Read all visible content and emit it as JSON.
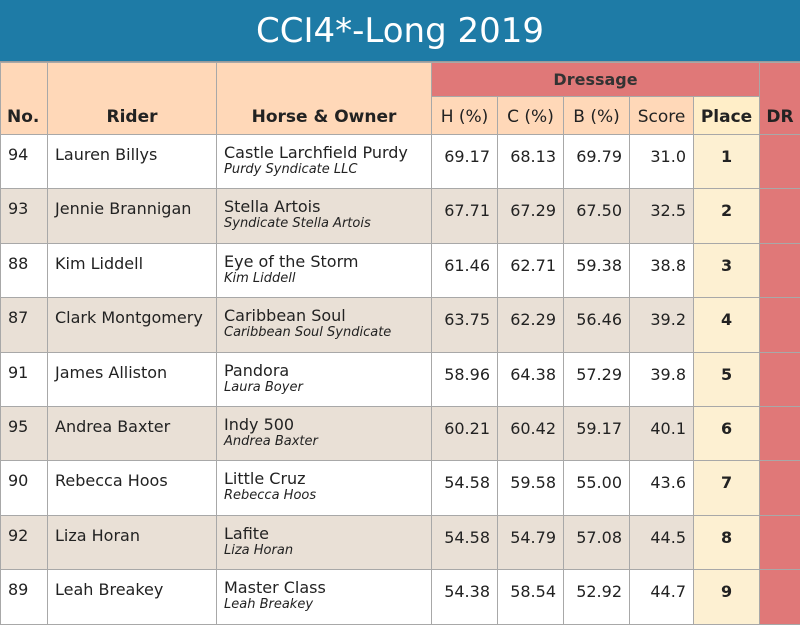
{
  "title": "CCI4*-Long 2019",
  "headers": {
    "no": "No.",
    "rider": "Rider",
    "horse": "Horse & Owner",
    "dressage": "Dressage",
    "h": "H (%)",
    "c": "C (%)",
    "b": "B (%)",
    "score": "Score",
    "place": "Place",
    "dr": "DR"
  },
  "rows": [
    {
      "no": "94",
      "rider": "Lauren Billys",
      "horse": "Castle Larchfield Purdy",
      "owner": "Purdy Syndicate LLC",
      "h": "69.17",
      "c": "68.13",
      "b": "69.79",
      "score": "31.0",
      "place": "1"
    },
    {
      "no": "93",
      "rider": "Jennie Brannigan",
      "horse": "Stella Artois",
      "owner": "Syndicate Stella Artois",
      "h": "67.71",
      "c": "67.29",
      "b": "67.50",
      "score": "32.5",
      "place": "2"
    },
    {
      "no": "88",
      "rider": "Kim Liddell",
      "horse": "Eye of the Storm",
      "owner": "Kim Liddell",
      "h": "61.46",
      "c": "62.71",
      "b": "59.38",
      "score": "38.8",
      "place": "3"
    },
    {
      "no": "87",
      "rider": "Clark Montgomery",
      "horse": "Caribbean Soul",
      "owner": "Caribbean Soul Syndicate",
      "h": "63.75",
      "c": "62.29",
      "b": "56.46",
      "score": "39.2",
      "place": "4"
    },
    {
      "no": "91",
      "rider": "James Alliston",
      "horse": "Pandora",
      "owner": "Laura Boyer",
      "h": "58.96",
      "c": "64.38",
      "b": "57.29",
      "score": "39.8",
      "place": "5"
    },
    {
      "no": "95",
      "rider": "Andrea Baxter",
      "horse": "Indy 500",
      "owner": "Andrea Baxter",
      "h": "60.21",
      "c": "60.42",
      "b": "59.17",
      "score": "40.1",
      "place": "6"
    },
    {
      "no": "90",
      "rider": "Rebecca Hoos",
      "horse": "Little Cruz",
      "owner": "Rebecca Hoos",
      "h": "54.58",
      "c": "59.58",
      "b": "55.00",
      "score": "43.6",
      "place": "7"
    },
    {
      "no": "92",
      "rider": "Liza Horan",
      "horse": "Lafite",
      "owner": "Liza Horan",
      "h": "54.58",
      "c": "54.79",
      "b": "57.08",
      "score": "44.5",
      "place": "8"
    },
    {
      "no": "89",
      "rider": "Leah Breakey",
      "horse": "Master Class",
      "owner": "Leah Breakey",
      "h": "54.38",
      "c": "58.54",
      "b": "52.92",
      "score": "44.7",
      "place": "9"
    }
  ]
}
